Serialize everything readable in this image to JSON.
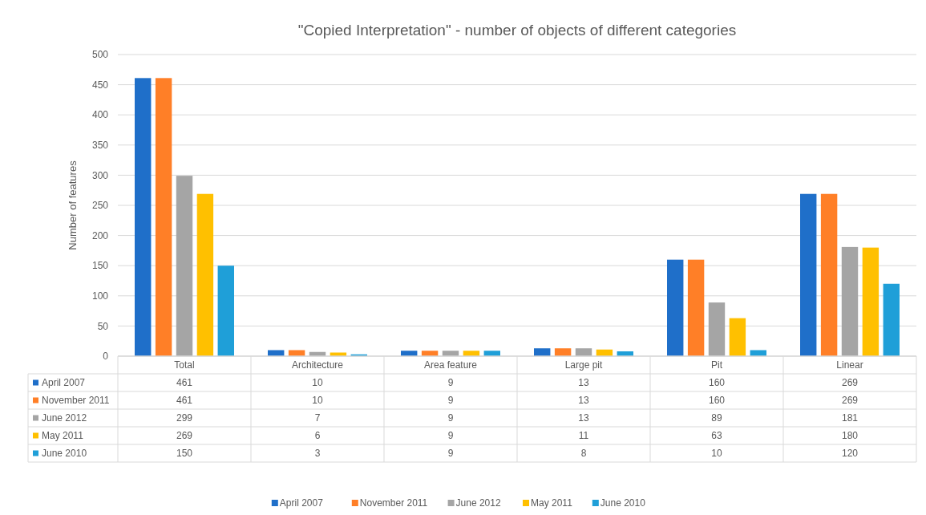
{
  "chart_data": {
    "type": "bar",
    "title": "\"Copied Interpretation\" - number of objects of different categories",
    "ylabel": "Number of features",
    "categories": [
      "Total",
      "Architecture",
      "Area feature",
      "Large pit",
      "Pit",
      "Linear"
    ],
    "series": [
      {
        "name": "April 2007",
        "color": "#1f6fc9",
        "values": [
          461,
          10,
          9,
          13,
          160,
          269
        ]
      },
      {
        "name": "November 2011",
        "color": "#ff7f27",
        "values": [
          461,
          10,
          9,
          13,
          160,
          269
        ]
      },
      {
        "name": "June 2012",
        "color": "#a5a5a5",
        "values": [
          299,
          7,
          9,
          13,
          89,
          181
        ]
      },
      {
        "name": "May 2011",
        "color": "#ffc000",
        "values": [
          269,
          6,
          9,
          11,
          63,
          180
        ]
      },
      {
        "name": "June 2010",
        "color": "#1f9fd8",
        "values": [
          150,
          3,
          9,
          8,
          10,
          120
        ]
      }
    ],
    "ylim": [
      0,
      500
    ],
    "yticks": [
      0,
      50,
      100,
      150,
      200,
      250,
      300,
      350,
      400,
      450,
      500
    ],
    "grid": "y",
    "legend": "bottom",
    "data_labels": true
  }
}
